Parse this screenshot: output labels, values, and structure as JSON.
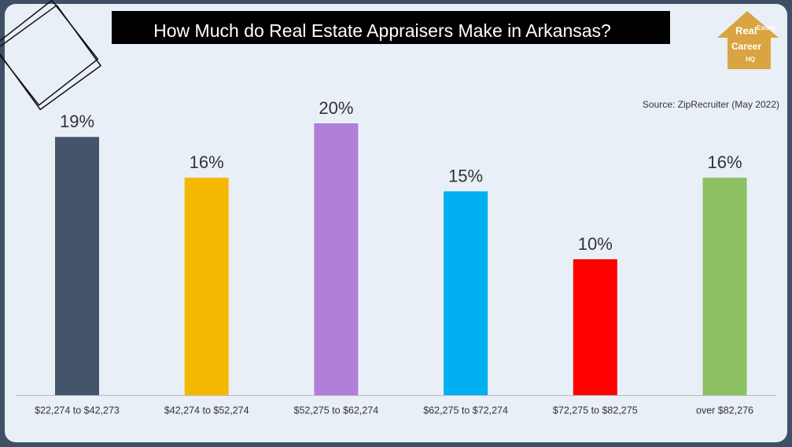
{
  "chart_data": {
    "type": "bar",
    "title": "How Much do Real Estate Appraisers Make in Arkansas?",
    "source": "Source: ZipRecruiter (May 2022)",
    "categories": [
      "$22,274 to $42,273",
      "$42,274 to $52,274",
      "$52,275 to $62,274",
      "$62,275 to $72,274",
      "$72,275 to $82,275",
      "over $82,276"
    ],
    "values": [
      19,
      16,
      20,
      15,
      10,
      16
    ],
    "value_labels": [
      "19%",
      "16%",
      "20%",
      "15%",
      "10%",
      "16%"
    ],
    "colors": [
      "#44546a",
      "#f5b800",
      "#b07fd8",
      "#00b0f0",
      "#ff0000",
      "#8cc063"
    ]
  },
  "logo": {
    "line1": "Real",
    "line2": "Estate",
    "line3": "Career",
    "line4": "HQ"
  }
}
